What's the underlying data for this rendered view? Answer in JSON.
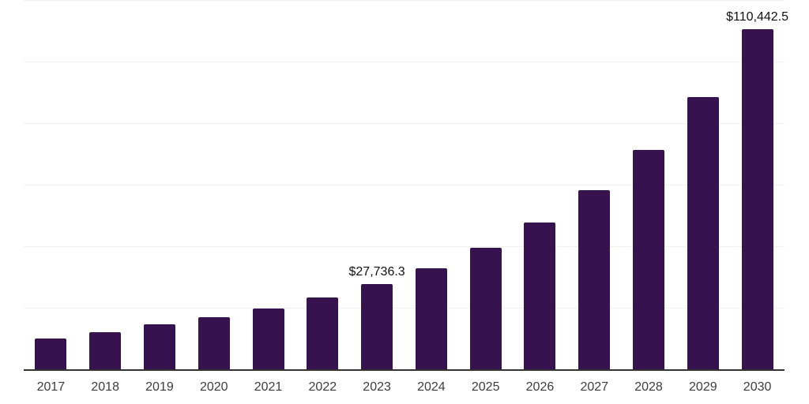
{
  "chart_data": {
    "type": "bar",
    "title": "",
    "xlabel": "",
    "ylabel": "",
    "categories": [
      "2017",
      "2018",
      "2019",
      "2020",
      "2021",
      "2022",
      "2023",
      "2024",
      "2025",
      "2026",
      "2027",
      "2028",
      "2029",
      "2030"
    ],
    "values": [
      10050,
      11950,
      14500,
      16900,
      19800,
      23300,
      27736.3,
      32700,
      39500,
      47700,
      58100,
      71250,
      88400,
      110442.5
    ],
    "data_labels": {
      "2023": "$27,736.3",
      "2030": "$110,442.5"
    },
    "ylim": [
      0,
      120000
    ],
    "gridline_interval": 20000,
    "y_tick_labels": "hidden",
    "legend": "none",
    "grid": "horizontal",
    "colors": {
      "bar": "#36124F",
      "gridline": "#F0F0F2",
      "axis": "#333333",
      "tick_text": "#3D3D3D",
      "data_label_text": "#111111",
      "background": "#FFFFFF"
    }
  }
}
